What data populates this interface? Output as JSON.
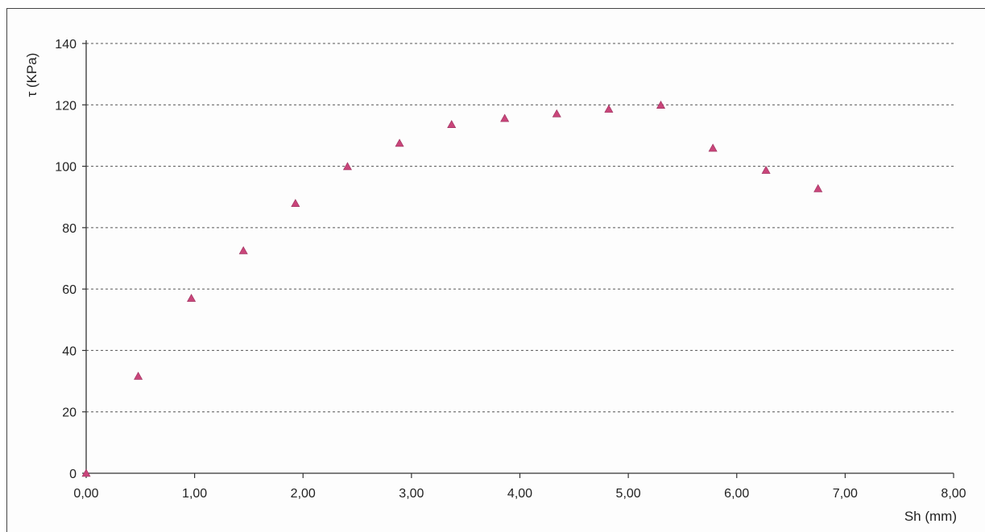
{
  "chart_data": {
    "type": "scatter",
    "title": "",
    "xlabel": "Sh (mm)",
    "ylabel": "τ (KPa)",
    "xlim": [
      0,
      8
    ],
    "ylim": [
      0,
      140
    ],
    "x_ticks": [
      "0,00",
      "1,00",
      "2,00",
      "3,00",
      "4,00",
      "5,00",
      "6,00",
      "7,00",
      "8,00"
    ],
    "y_ticks": [
      "0",
      "20",
      "40",
      "60",
      "80",
      "100",
      "120",
      "140"
    ],
    "grid": "horizontal dashed",
    "marker": "triangle",
    "colors": {
      "marker": "#c9457a",
      "grid": "#555555",
      "axis": "#333333"
    },
    "series": [
      {
        "x": [
          0.0,
          0.48,
          0.97,
          1.45,
          1.93,
          2.41,
          2.89,
          3.37,
          3.86,
          4.34,
          4.82,
          5.3,
          5.78,
          6.27,
          6.75
        ],
        "y": [
          0.0,
          31.6,
          57.0,
          72.5,
          87.9,
          99.9,
          107.5,
          113.6,
          115.6,
          117.1,
          118.6,
          119.9,
          105.9,
          98.7,
          92.7
        ]
      }
    ]
  }
}
